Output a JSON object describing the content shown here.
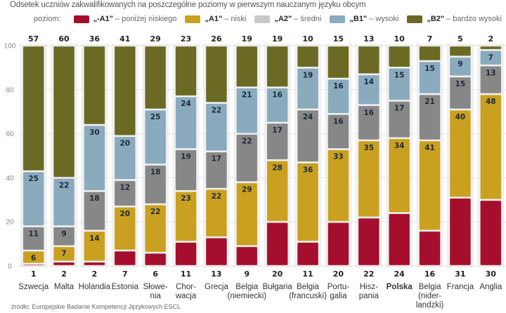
{
  "title": "Odsetek uczniów zakwalifikowanych na poszczególne poziomy w pierwszym nauczanym języku obcym",
  "legend": {
    "label": "poziom:",
    "items": [
      {
        "code": "„-A1\"",
        "desc": "– poniżej niskiego",
        "color": "#a50e2d"
      },
      {
        "code": "„A1\"",
        "desc": "– niski",
        "color": "#c9a01f"
      },
      {
        "code": "„A2\"",
        "desc": "– średni",
        "color": "#c8c8c8"
      },
      {
        "code": "„B1\"",
        "desc": "– wysoki",
        "color": "#8aaabe"
      },
      {
        "code": "„B2\"",
        "desc": "– bardzo wysoki",
        "color": "#6b6a24"
      }
    ]
  },
  "source": "źródło: Europejskie Badanie Kompetencji Językowych ESCL",
  "chart_data": {
    "type": "bar",
    "stacked": true,
    "title": "Odsetek uczniów zakwalifikowanych na poszczególne poziomy w pierwszym nauczanym języku obcym",
    "xlabel": "",
    "ylabel": "",
    "ylim": [
      0,
      100
    ],
    "yticks": [
      0,
      20,
      40,
      60,
      80,
      100
    ],
    "grid": true,
    "legend_position": "top-right",
    "categories": [
      [
        "Szwecja"
      ],
      [
        "Malta"
      ],
      [
        "Holandia"
      ],
      [
        "Estonia"
      ],
      [
        "Słowe-",
        "nia"
      ],
      [
        "Chor-",
        "wacja"
      ],
      [
        "Grecja"
      ],
      [
        "Belgia",
        "(niemiecki)"
      ],
      [
        "Bułgaria"
      ],
      [
        "Belgia",
        "(francuski)"
      ],
      [
        "Portu-",
        "galia"
      ],
      [
        "Hisz-",
        "pania"
      ],
      [
        "Polska"
      ],
      [
        "Belgia",
        "(nider-",
        "landzki)"
      ],
      [
        "Francja"
      ],
      [
        "Anglia"
      ]
    ],
    "highlight_category_index": 12,
    "series": [
      {
        "name": "-A1",
        "color": "#a50e2d",
        "values": [
          1,
          2,
          2,
          7,
          6,
          11,
          13,
          9,
          20,
          11,
          20,
          22,
          24,
          16,
          31,
          30
        ],
        "label_position": "bottom"
      },
      {
        "name": "A1",
        "color": "#c9a01f",
        "values": [
          6,
          7,
          14,
          20,
          22,
          23,
          22,
          29,
          28,
          36,
          33,
          35,
          34,
          41,
          40,
          48
        ],
        "label_position": "inside"
      },
      {
        "name": "A2",
        "color": "#878787",
        "values": [
          11,
          9,
          18,
          12,
          18,
          19,
          17,
          22,
          17,
          24,
          16,
          16,
          17,
          21,
          15,
          13
        ],
        "label_position": "inside"
      },
      {
        "name": "B1",
        "color": "#8aaabe",
        "values": [
          25,
          22,
          30,
          20,
          25,
          24,
          22,
          21,
          16,
          19,
          16,
          14,
          15,
          15,
          9,
          7
        ],
        "label_position": "inside"
      },
      {
        "name": "B2",
        "color": "#6b6a24",
        "values": [
          57,
          60,
          36,
          41,
          29,
          23,
          26,
          19,
          19,
          10,
          15,
          13,
          10,
          7,
          5,
          2
        ],
        "label_position": "top"
      }
    ]
  }
}
